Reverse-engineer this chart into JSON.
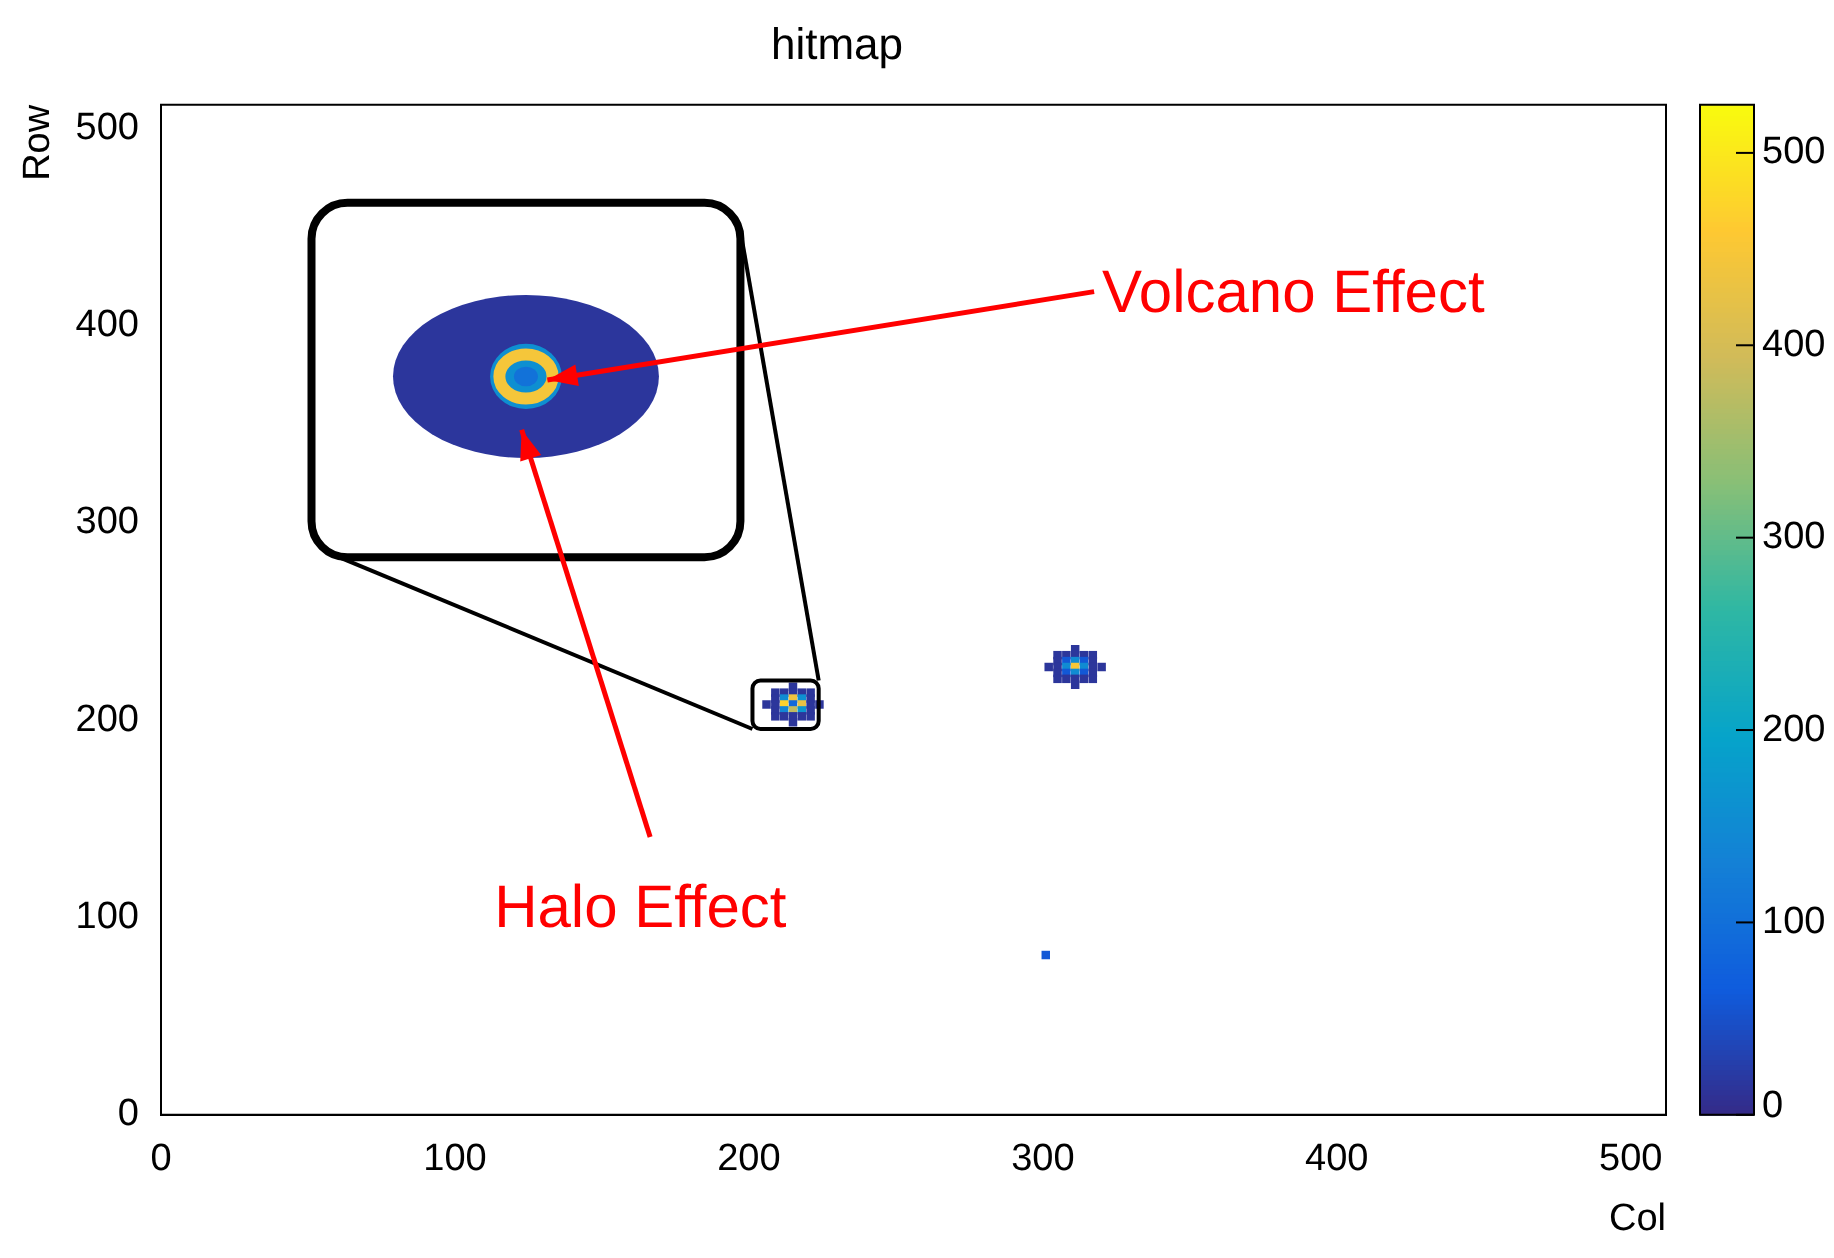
{
  "chart_data": {
    "type": "scatter",
    "title": "hitmap",
    "xlabel": "Col",
    "ylabel": "Row",
    "xlim": [
      0,
      512
    ],
    "ylim": [
      0,
      512
    ],
    "xticks": [
      0,
      100,
      200,
      300,
      400,
      500
    ],
    "yticks": [
      0,
      100,
      200,
      300,
      400,
      500
    ],
    "clim": [
      0,
      525
    ],
    "cticks": [
      0,
      100,
      200,
      300,
      400,
      500
    ],
    "marker": "square",
    "grid": false,
    "legend": false,
    "annotations": [
      "Volcano Effect",
      "Halo Effect"
    ],
    "series": [
      {
        "x": [
          215,
          209,
          212,
          215,
          218,
          221,
          209,
          212,
          215,
          218,
          221,
          206,
          209,
          212,
          215,
          218,
          221,
          224,
          209,
          212,
          215,
          218,
          221,
          209,
          212,
          215,
          218,
          221,
          215,
          311,
          305,
          308,
          311,
          314,
          317,
          305,
          308,
          311,
          314,
          317,
          302,
          305,
          308,
          311,
          314,
          317,
          320,
          305,
          308,
          311,
          314,
          317,
          305,
          308,
          311,
          314,
          317,
          311,
          301
        ],
        "values": [
          217,
          214,
          214,
          214,
          214,
          214,
          211,
          211,
          211,
          211,
          211,
          208,
          208,
          208,
          208,
          208,
          208,
          208,
          205,
          205,
          205,
          205,
          205,
          202,
          202,
          202,
          202,
          202,
          199,
          236,
          233,
          233,
          233,
          233,
          233,
          230,
          230,
          230,
          230,
          230,
          227,
          227,
          227,
          227,
          227,
          227,
          227,
          224,
          224,
          224,
          224,
          224,
          221,
          221,
          221,
          221,
          221,
          218,
          81
        ],
        "cvalues": [
          15,
          15,
          15,
          15,
          15,
          15,
          15,
          150,
          440,
          160,
          15,
          15,
          15,
          470,
          90,
          430,
          15,
          15,
          15,
          140,
          380,
          170,
          15,
          15,
          15,
          15,
          15,
          15,
          15,
          15,
          15,
          15,
          15,
          15,
          15,
          15,
          60,
          150,
          60,
          15,
          15,
          15,
          150,
          450,
          150,
          15,
          15,
          15,
          60,
          150,
          60,
          15,
          15,
          15,
          15,
          15,
          15,
          15,
          60
        ]
      }
    ]
  }
}
